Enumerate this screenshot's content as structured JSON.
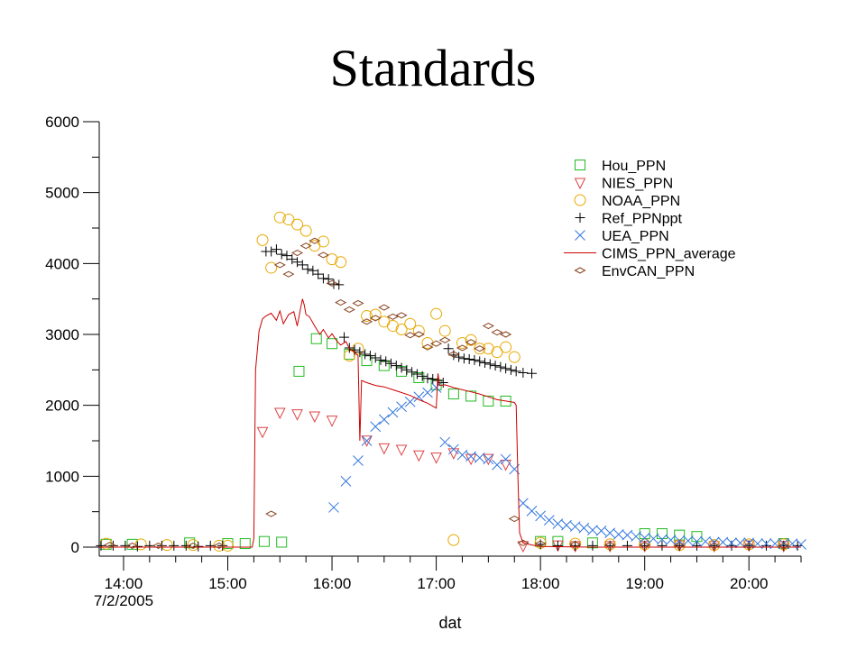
{
  "slide": {
    "title": "Standards"
  },
  "chart_data": {
    "type": "scatter",
    "title": "Standards",
    "xlabel": "dat",
    "ylabel": "",
    "date_label": "7/2/2005",
    "xlim": [
      "13:46",
      "20:30"
    ],
    "ylim": [
      0,
      6000
    ],
    "y_ticks": [
      0,
      1000,
      2000,
      3000,
      4000,
      5000,
      6000
    ],
    "x_ticks": [
      "14:00",
      "15:00",
      "16:00",
      "17:00",
      "18:00",
      "19:00",
      "20:00"
    ],
    "legend_position": "top-right",
    "grid": false,
    "series": [
      {
        "name": "Hou_PPN",
        "marker": "square",
        "color": "#22bb22",
        "x": [
          "13:50",
          "14:05",
          "14:38",
          "15:00",
          "15:10",
          "15:21",
          "15:31",
          "15:41",
          "15:51",
          "16:00",
          "16:10",
          "16:20",
          "16:30",
          "16:40",
          "16:50",
          "17:00",
          "17:10",
          "17:20",
          "17:30",
          "17:40",
          "18:00",
          "18:10",
          "18:30",
          "19:00",
          "19:10",
          "19:20",
          "19:30",
          "20:20"
        ],
        "y": [
          40,
          40,
          60,
          50,
          50,
          80,
          70,
          2480,
          2940,
          2870,
          2720,
          2630,
          2560,
          2480,
          2390,
          2290,
          2160,
          2130,
          2060,
          2060,
          80,
          80,
          60,
          190,
          190,
          170,
          150,
          50
        ]
      },
      {
        "name": "NIES_PPN",
        "marker": "triangle-down",
        "color": "#dd4444",
        "x": [
          "15:20",
          "15:30",
          "15:40",
          "15:50",
          "16:00",
          "16:20",
          "16:30",
          "16:40",
          "16:50",
          "17:00",
          "17:10",
          "17:20",
          "17:30",
          "17:40",
          "17:50",
          "18:10",
          "18:20",
          "18:40",
          "19:00",
          "19:20",
          "19:40",
          "20:00",
          "20:20"
        ],
        "y": [
          1630,
          1900,
          1880,
          1850,
          1790,
          1510,
          1400,
          1380,
          1300,
          1270,
          1330,
          1250,
          1250,
          1170,
          20,
          30,
          20,
          20,
          20,
          30,
          20,
          30,
          20
        ]
      },
      {
        "name": "NOAA_PPN",
        "marker": "circle",
        "color": "#e8a800",
        "x": [
          "13:50",
          "14:10",
          "14:25",
          "14:40",
          "14:55",
          "15:00",
          "15:20",
          "15:25",
          "15:30",
          "15:35",
          "15:40",
          "15:45",
          "15:50",
          "15:55",
          "16:00",
          "16:05",
          "16:10",
          "16:15",
          "16:20",
          "16:25",
          "16:30",
          "16:35",
          "16:40",
          "16:45",
          "16:50",
          "16:55",
          "17:00",
          "17:05",
          "17:10",
          "17:15",
          "17:20",
          "17:25",
          "17:30",
          "17:35",
          "17:40",
          "17:45",
          "18:00",
          "18:20",
          "18:40",
          "19:00",
          "19:20",
          "19:40",
          "20:00",
          "20:20"
        ],
        "y": [
          50,
          40,
          30,
          30,
          20,
          20,
          4330,
          3940,
          4650,
          4620,
          4550,
          4460,
          4250,
          4310,
          4060,
          4020,
          2700,
          2800,
          3260,
          3280,
          3180,
          3120,
          3070,
          3150,
          3050,
          2880,
          3290,
          3050,
          100,
          2880,
          2920,
          2800,
          2800,
          2750,
          2820,
          2680,
          60,
          50,
          40,
          40,
          30,
          30,
          40,
          40
        ]
      },
      {
        "name": "Ref_PPNppt",
        "marker": "plus",
        "color": "#000000",
        "x": [
          "13:47",
          "13:54",
          "14:01",
          "14:08",
          "14:15",
          "14:22",
          "14:29",
          "14:36",
          "14:43",
          "14:50",
          "14:57",
          "15:22",
          "15:25",
          "15:28",
          "15:31",
          "15:34",
          "15:37",
          "15:40",
          "15:43",
          "15:46",
          "15:49",
          "15:52",
          "15:55",
          "15:58",
          "16:01",
          "16:04",
          "16:07",
          "16:10",
          "16:13",
          "16:16",
          "16:19",
          "16:22",
          "16:25",
          "16:28",
          "16:31",
          "16:34",
          "16:37",
          "16:40",
          "16:43",
          "16:46",
          "16:49",
          "16:52",
          "16:55",
          "16:58",
          "17:01",
          "17:04",
          "17:07",
          "17:10",
          "17:13",
          "17:16",
          "17:19",
          "17:22",
          "17:25",
          "17:28",
          "17:31",
          "17:34",
          "17:37",
          "17:40",
          "17:43",
          "17:46",
          "17:50",
          "17:55",
          "18:00",
          "18:10",
          "18:20",
          "18:30",
          "18:40",
          "18:50",
          "19:00",
          "19:10",
          "19:20",
          "19:30",
          "19:40",
          "19:50",
          "20:00",
          "20:10",
          "20:20",
          "20:28"
        ],
        "y": [
          20,
          20,
          20,
          10,
          20,
          20,
          20,
          20,
          10,
          20,
          20,
          4170,
          4170,
          4200,
          4130,
          4110,
          4060,
          4020,
          3980,
          3920,
          3900,
          3850,
          3790,
          3780,
          3710,
          3700,
          2960,
          2810,
          2780,
          2750,
          2720,
          2700,
          2670,
          2640,
          2620,
          2590,
          2560,
          2530,
          2500,
          2470,
          2440,
          2410,
          2380,
          2370,
          2350,
          2320,
          2800,
          2710,
          2680,
          2660,
          2650,
          2640,
          2620,
          2600,
          2580,
          2560,
          2540,
          2520,
          2500,
          2480,
          2460,
          2450,
          40,
          20,
          20,
          20,
          20,
          20,
          20,
          20,
          20,
          20,
          20,
          20,
          20,
          20,
          20,
          20
        ]
      },
      {
        "name": "UEA_PPN",
        "marker": "x",
        "color": "#3377dd",
        "x": [
          "16:01",
          "16:08",
          "16:15",
          "16:20",
          "16:25",
          "16:30",
          "16:35",
          "16:40",
          "16:45",
          "16:50",
          "16:55",
          "17:00",
          "17:05",
          "17:10",
          "17:15",
          "17:20",
          "17:25",
          "17:30",
          "17:35",
          "17:40",
          "17:45",
          "17:50",
          "17:55",
          "18:00",
          "18:05",
          "18:10",
          "18:15",
          "18:20",
          "18:25",
          "18:30",
          "18:35",
          "18:40",
          "18:45",
          "18:50",
          "18:55",
          "19:00",
          "19:05",
          "19:10",
          "19:15",
          "19:20",
          "19:25",
          "19:30",
          "19:35",
          "19:40",
          "19:45",
          "19:50",
          "19:55",
          "20:00",
          "20:05",
          "20:10",
          "20:15",
          "20:20",
          "20:25",
          "20:30"
        ],
        "y": [
          560,
          930,
          1220,
          1500,
          1700,
          1800,
          1900,
          1980,
          2050,
          2120,
          2180,
          2250,
          1480,
          1380,
          1300,
          1280,
          1260,
          1240,
          1160,
          1240,
          1100,
          620,
          510,
          440,
          380,
          330,
          310,
          290,
          270,
          240,
          230,
          200,
          180,
          170,
          150,
          130,
          120,
          110,
          100,
          90,
          90,
          80,
          80,
          70,
          70,
          60,
          60,
          60,
          50,
          50,
          50,
          50,
          50,
          40
        ]
      },
      {
        "name": "CIMS_PPN_average",
        "marker": "line",
        "color": "#cc0000",
        "x": [
          "13:46",
          "14:00",
          "14:30",
          "15:00",
          "15:14",
          "15:15",
          "15:16",
          "15:18",
          "15:20",
          "15:22",
          "15:25",
          "15:28",
          "15:30",
          "15:32",
          "15:35",
          "15:38",
          "15:40",
          "15:42",
          "15:43",
          "15:44",
          "15:45",
          "15:47",
          "15:50",
          "15:53",
          "15:55",
          "15:58",
          "16:00",
          "16:03",
          "16:05",
          "16:08",
          "16:10",
          "16:13",
          "16:15",
          "16:16",
          "16:17",
          "16:20",
          "16:25",
          "16:30",
          "16:35",
          "16:40",
          "16:45",
          "16:50",
          "16:55",
          "17:00",
          "17:01",
          "17:02",
          "17:05",
          "17:10",
          "17:15",
          "17:20",
          "17:25",
          "17:30",
          "17:35",
          "17:40",
          "17:45",
          "17:46",
          "17:47",
          "17:48",
          "17:50",
          "17:55",
          "18:00",
          "18:30",
          "19:00",
          "19:30",
          "20:00",
          "20:30"
        ],
        "y": [
          0,
          0,
          0,
          0,
          0,
          120,
          2500,
          3050,
          3220,
          3260,
          3300,
          3200,
          3330,
          3150,
          3280,
          3320,
          3120,
          3380,
          3500,
          3420,
          3280,
          3250,
          3120,
          3000,
          3070,
          2950,
          3010,
          2900,
          2850,
          2900,
          2800,
          2750,
          2700,
          1500,
          2350,
          2320,
          2280,
          2260,
          2220,
          2180,
          2140,
          2080,
          2030,
          1960,
          2450,
          2280,
          2290,
          2250,
          2220,
          2190,
          2160,
          2120,
          2080,
          2060,
          2040,
          2000,
          1000,
          200,
          60,
          30,
          10,
          0,
          0,
          0,
          0,
          0
        ]
      },
      {
        "name": "EnvCAN_PPN",
        "marker": "diamond",
        "color": "#884422",
        "x": [
          "13:52",
          "14:05",
          "14:20",
          "14:40",
          "14:55",
          "15:25",
          "15:30",
          "15:35",
          "15:40",
          "15:45",
          "15:50",
          "15:55",
          "16:00",
          "16:05",
          "16:10",
          "16:15",
          "16:20",
          "16:25",
          "16:30",
          "16:35",
          "16:40",
          "16:45",
          "16:50",
          "16:55",
          "17:00",
          "17:05",
          "17:10",
          "17:15",
          "17:20",
          "17:25",
          "17:30",
          "17:35",
          "17:40",
          "17:45",
          "17:50",
          "18:00",
          "18:20",
          "18:40",
          "19:00",
          "19:20",
          "19:40",
          "20:00",
          "20:20"
        ],
        "y": [
          30,
          20,
          20,
          20,
          20,
          470,
          3980,
          3850,
          4150,
          4250,
          4320,
          4120,
          3720,
          3450,
          3350,
          3440,
          3180,
          3230,
          3380,
          3250,
          3270,
          2990,
          3000,
          2820,
          2870,
          2920,
          2720,
          2810,
          2890,
          2800,
          3120,
          3030,
          3000,
          400,
          60,
          50,
          40,
          30,
          30,
          20,
          20,
          20,
          20
        ]
      }
    ]
  }
}
